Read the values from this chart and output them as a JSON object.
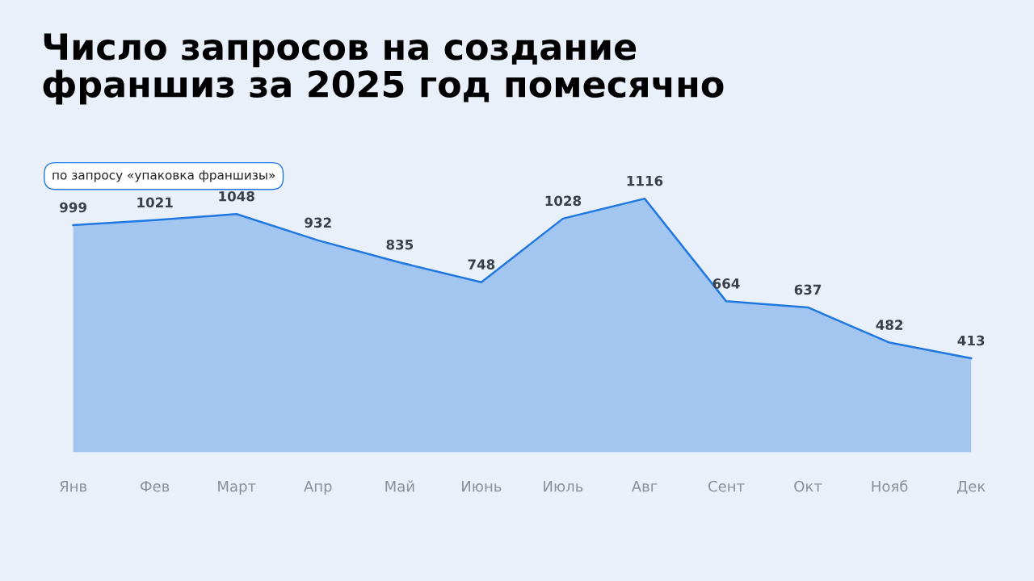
{
  "chart_data": {
    "type": "area",
    "title": "Число запросов на создание\nфраншиз за 2025 год помесячно",
    "subtitle": "по запросу «упаковка франшизы»",
    "categories": [
      "Янв",
      "Фев",
      "Март",
      "Апр",
      "Май",
      "Июнь",
      "Июль",
      "Авг",
      "Сент",
      "Окт",
      "Нояб",
      "Дек"
    ],
    "series": [
      {
        "color": "#1f78e0",
        "values": [
          999,
          1021,
          1048,
          932,
          835,
          748,
          1028,
          1116,
          664,
          637,
          482,
          413
        ]
      }
    ],
    "data_labels": true,
    "grid": false,
    "legend": false,
    "marker": "none",
    "line_style": "solid"
  }
}
